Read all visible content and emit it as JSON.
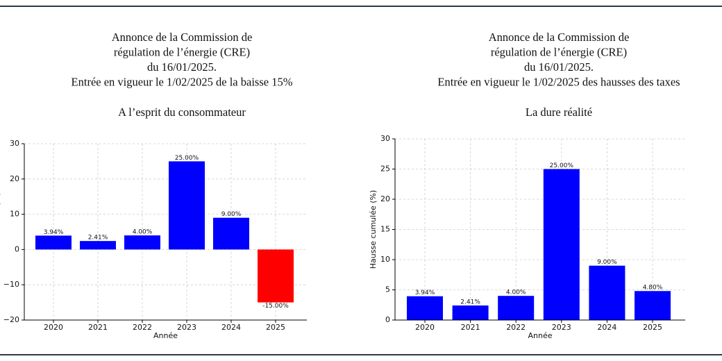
{
  "chart_data": [
    {
      "type": "bar",
      "title": [
        "Annonce de la Commission de",
        "régulation de l’énergie (CRE)",
        "du 16/01/2025.",
        "Entrée en vigueur le 1/02/2025 de la baisse 15%"
      ],
      "subtitle": "A l’esprit du consommateur",
      "x_label": "Année",
      "y_label": "Hausse cumulée (%)",
      "categories": [
        "2020",
        "2021",
        "2022",
        "2023",
        "2024",
        "2025"
      ],
      "values": [
        3.94,
        2.41,
        4.0,
        25.0,
        9.0,
        -15.0
      ],
      "value_labels": [
        "3.94%",
        "2.41%",
        "4.00%",
        "25.00%",
        "9.00%",
        "-15.00%"
      ],
      "colors": [
        "#0000ff",
        "#0000ff",
        "#0000ff",
        "#0000ff",
        "#0000ff",
        "#ff0000"
      ],
      "ylim": [
        -20,
        30
      ],
      "yticks": [
        {
          "value": -20,
          "label": "−20"
        },
        {
          "value": -10,
          "label": "−10"
        },
        0,
        10,
        20,
        30
      ],
      "grid": true
    },
    {
      "type": "bar",
      "title": [
        "Annonce de la Commission de",
        "régulation de l’énergie (CRE)",
        "du 16/01/2025.",
        "Entrée en vigueur le 1/02/2025 des hausses des taxes"
      ],
      "subtitle": "La dure réalité",
      "x_label": "Année",
      "y_label": "Hausse cumulée (%)",
      "categories": [
        "2020",
        "2021",
        "2022",
        "2023",
        "2024",
        "2025"
      ],
      "values": [
        3.94,
        2.41,
        4.0,
        25.0,
        9.0,
        4.8
      ],
      "value_labels": [
        "3.94%",
        "2.41%",
        "4.00%",
        "25.00%",
        "9.00%",
        "4.80%"
      ],
      "colors": [
        "#0000ff",
        "#0000ff",
        "#0000ff",
        "#0000ff",
        "#0000ff",
        "#0000ff"
      ],
      "ylim": [
        0,
        30
      ],
      "yticks": [
        0,
        5,
        10,
        15,
        20,
        25,
        30
      ],
      "grid": true
    }
  ]
}
